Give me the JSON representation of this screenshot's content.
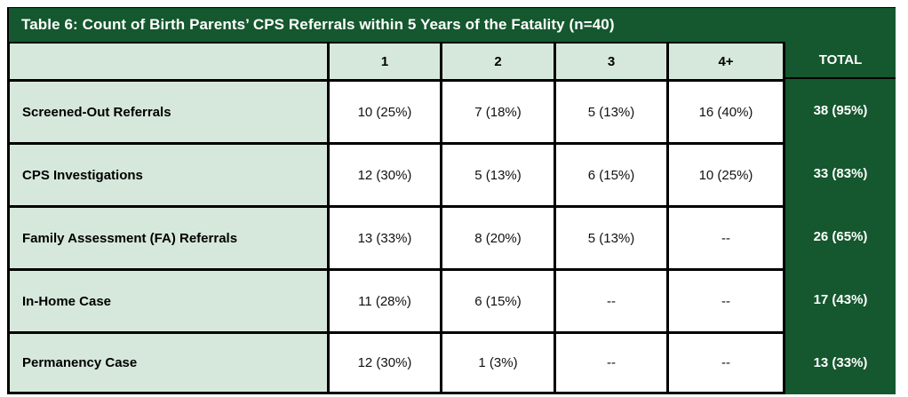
{
  "table": {
    "title": "Table 6: Count of Birth Parents’ CPS Referrals within 5 Years of the Fatality (n=40)",
    "columns": [
      "1",
      "2",
      "3",
      "4+",
      "TOTAL"
    ],
    "rows": [
      {
        "label": "Screened-Out Referrals",
        "values": [
          "10 (25%)",
          "7 (18%)",
          "5 (13%)",
          "16 (40%)"
        ],
        "total": "38 (95%)"
      },
      {
        "label": "CPS Investigations",
        "values": [
          "12 (30%)",
          "5 (13%)",
          "6 (15%)",
          "10 (25%)"
        ],
        "total": "33 (83%)"
      },
      {
        "label": "Family Assessment (FA) Referrals",
        "values": [
          "13 (33%)",
          "8 (20%)",
          "5 (13%)",
          "--"
        ],
        "total": "26 (65%)"
      },
      {
        "label": "In-Home Case",
        "values": [
          "11 (28%)",
          "6 (15%)",
          "--",
          "--"
        ],
        "total": "17 (43%)"
      },
      {
        "label": "Permanency Case",
        "values": [
          "12 (30%)",
          "1 (3%)",
          "--",
          "--"
        ],
        "total": "13 (33%)"
      }
    ]
  },
  "colors": {
    "dark_green": "#15572E",
    "light_green": "#D6E8DB",
    "border_black": "#000000",
    "white_text": "#FFFFFF"
  }
}
